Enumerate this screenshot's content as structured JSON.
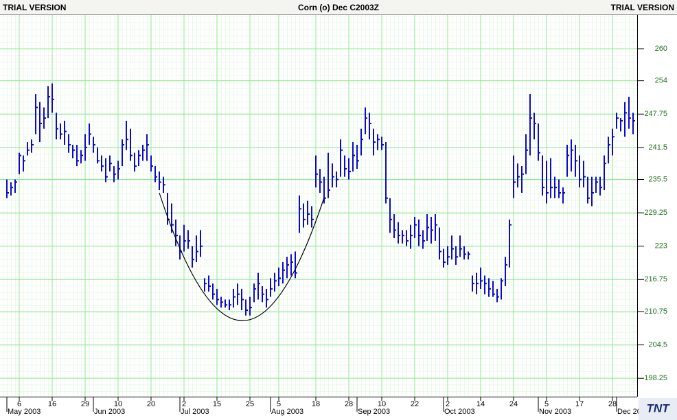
{
  "chart_data": {
    "type": "ohlc",
    "title": "Corn (o) Dec C2003Z",
    "watermark_left": "TRIAL VERSION",
    "watermark_right": "TRIAL VERSION",
    "logo": "TNT",
    "color": "#0a0ac8",
    "grid": true,
    "ylim": [
      194.8,
      266.3
    ],
    "yticks": [
      198.25,
      204.5,
      210.75,
      216.75,
      223,
      229.25,
      235.5,
      241.5,
      247.75,
      254,
      260
    ],
    "categories": [
      null,
      null,
      null,
      "6",
      null,
      null,
      null,
      null,
      null,
      null,
      null,
      "16",
      null,
      null,
      null,
      null,
      null,
      null,
      null,
      "29",
      null,
      null,
      null,
      null,
      null,
      null,
      null,
      "10",
      null,
      null,
      null,
      null,
      null,
      null,
      null,
      "20",
      null,
      null,
      null,
      null,
      null,
      null,
      null,
      "2",
      null,
      null,
      null,
      null,
      null,
      null,
      null,
      "15",
      null,
      null,
      null,
      null,
      null,
      null,
      null,
      "25",
      null,
      null,
      null,
      null,
      null,
      null,
      "5",
      null,
      null,
      null,
      null,
      null,
      null,
      null,
      null,
      "18",
      null,
      null,
      null,
      null,
      null,
      null,
      null,
      "28",
      null,
      null,
      null,
      null,
      null,
      null,
      null,
      "10",
      null,
      null,
      null,
      null,
      null,
      null,
      null,
      "22",
      null,
      null,
      null,
      null,
      null,
      null,
      null,
      "2",
      null,
      null,
      null,
      null,
      null,
      null,
      null,
      "14",
      null,
      null,
      null,
      null,
      null,
      null,
      null,
      "24",
      null,
      null,
      null,
      null,
      null,
      null,
      null,
      "5",
      null,
      null,
      null,
      null,
      null,
      null,
      null,
      "17",
      null,
      null,
      null,
      null,
      null,
      null,
      null,
      "28",
      null,
      null,
      null,
      null,
      null
    ],
    "month_labels": [
      "May 2003",
      null,
      null,
      null,
      null,
      null,
      null,
      null,
      null,
      null,
      null,
      null,
      null,
      null,
      null,
      null,
      null,
      null,
      null,
      null,
      null,
      "Jun 2003",
      null,
      null,
      null,
      null,
      null,
      null,
      null,
      null,
      null,
      null,
      null,
      null,
      null,
      null,
      null,
      null,
      null,
      null,
      null,
      null,
      "Jul 2003",
      null,
      null,
      null,
      null,
      null,
      null,
      null,
      null,
      null,
      null,
      null,
      null,
      null,
      null,
      null,
      null,
      null,
      null,
      null,
      null,
      null,
      "Aug 2003",
      null,
      null,
      null,
      null,
      null,
      null,
      null,
      null,
      null,
      null,
      null,
      null,
      null,
      null,
      null,
      null,
      null,
      null,
      null,
      null,
      "Sep 2003",
      null,
      null,
      null,
      null,
      null,
      null,
      null,
      null,
      null,
      null,
      null,
      null,
      null,
      null,
      null,
      null,
      null,
      null,
      null,
      null,
      "Oct 2003",
      null,
      null,
      null,
      null,
      null,
      null,
      null,
      null,
      null,
      null,
      null,
      null,
      null,
      null,
      null,
      null,
      null,
      null,
      null,
      null,
      null,
      null,
      "Nov 2003",
      null,
      null,
      null,
      null,
      null,
      null,
      null,
      null,
      null,
      null,
      null,
      null,
      null,
      null,
      null,
      null,
      null,
      null,
      "Dec 20",
      null,
      null,
      null,
      null
    ],
    "high": [
      235.5,
      235,
      235.5,
      240.5,
      240,
      242.5,
      243,
      251.5,
      250,
      249,
      253,
      253.5,
      248,
      246,
      246.5,
      244,
      242,
      242,
      241,
      244,
      246,
      243.5,
      241.5,
      240,
      239.5,
      240,
      238,
      239,
      243,
      246.5,
      245,
      240.5,
      241,
      242,
      244,
      240,
      238,
      237,
      236,
      233,
      231,
      228,
      225,
      227,
      226,
      223,
      225,
      226,
      217,
      217.5,
      216,
      215,
      213.5,
      213,
      213,
      215,
      216,
      215,
      213,
      213.5,
      216,
      218,
      215.5,
      215,
      217,
      218,
      219,
      220,
      221,
      221.5,
      222,
      232.5,
      231,
      231.5,
      230.5,
      240,
      237.5,
      236,
      240.5,
      238.5,
      237,
      243,
      240,
      239.5,
      242.5,
      242,
      245,
      249,
      248,
      245,
      244,
      243.5,
      242.5,
      232,
      229,
      227.5,
      226,
      226,
      227,
      228.5,
      228,
      226,
      229,
      228.5,
      229,
      226.5,
      222.5,
      223,
      225,
      223,
      225,
      223,
      222,
      217.5,
      218,
      219,
      217.5,
      217,
      216.5,
      215,
      217,
      221,
      228,
      240,
      238.5,
      238,
      244,
      251.5,
      248,
      246,
      240,
      239,
      239.5,
      236,
      235.5,
      234,
      242,
      243,
      242,
      240,
      239,
      236,
      236,
      236,
      236,
      240,
      243.5,
      245,
      248,
      247,
      250,
      251,
      248
    ],
    "low": [
      232,
      232.5,
      233,
      236.5,
      237,
      240,
      240.5,
      244,
      242.5,
      245,
      247,
      248,
      243,
      243,
      242,
      240.5,
      239.5,
      238,
      238.5,
      239,
      242,
      240.5,
      238.5,
      237,
      235,
      237,
      235,
      235.5,
      238,
      241,
      239,
      237,
      238,
      239,
      239,
      237,
      235,
      233.5,
      233,
      227,
      225.5,
      223,
      220.5,
      222,
      222.5,
      219,
      220,
      221,
      214.5,
      214.5,
      213,
      212,
      211.5,
      211.5,
      211,
      211.5,
      212,
      211,
      210,
      210,
      212.5,
      213,
      212.5,
      211.5,
      213.5,
      214.5,
      215.5,
      216,
      217,
      217.5,
      217,
      225.5,
      226.5,
      227,
      226.5,
      234,
      233,
      231,
      232,
      234,
      234,
      236,
      236,
      235.5,
      237,
      237.5,
      240,
      244,
      243,
      240,
      241,
      241,
      231,
      225.5,
      224.5,
      223.5,
      223.5,
      223,
      222.5,
      224.5,
      223,
      222.5,
      224,
      223.5,
      224,
      220.5,
      219,
      219.5,
      220.5,
      219.5,
      221,
      220.5,
      220.5,
      214.5,
      214,
      215,
      214,
      213.5,
      213.5,
      212.5,
      213,
      215.5,
      219,
      232,
      234,
      233,
      236.5,
      240,
      243,
      239,
      232.5,
      231,
      232,
      232,
      232,
      231,
      236,
      237,
      236,
      234,
      234,
      231,
      230.5,
      233,
      232.5,
      233.5,
      238.5,
      240,
      245,
      244.5,
      243.5,
      245,
      244
    ],
    "close": [
      233,
      234,
      235,
      240,
      239,
      241,
      242,
      249,
      246,
      247,
      251,
      250.5,
      245,
      244,
      244.5,
      242,
      241,
      239,
      240,
      241.5,
      244,
      242,
      239,
      238,
      236,
      238.5,
      236.5,
      237.5,
      242,
      243,
      240,
      238,
      240,
      241,
      242,
      238,
      236,
      235,
      234.5,
      228,
      227,
      225,
      222,
      224,
      224,
      220.5,
      222,
      223,
      216,
      215.5,
      214,
      213,
      212.5,
      212,
      212,
      213.5,
      214,
      213,
      211,
      211.5,
      215,
      216,
      214,
      213,
      215,
      216.5,
      217,
      218.5,
      219.5,
      220,
      218,
      230,
      228,
      229,
      228,
      236.5,
      235,
      232,
      233.5,
      236,
      235.5,
      241,
      237.5,
      237,
      240,
      239,
      243,
      247,
      246,
      242.5,
      243,
      242,
      232,
      228,
      226,
      225,
      225,
      224,
      225,
      227,
      225,
      224,
      226.5,
      226,
      227,
      222,
      220,
      221,
      222.5,
      221,
      222.5,
      221.5,
      221.5,
      216,
      216,
      216.5,
      216,
      215,
      214,
      213.5,
      216.5,
      219.5,
      227,
      235,
      236,
      236.5,
      241,
      247,
      246,
      240.5,
      234,
      233,
      234,
      234,
      233,
      233,
      240,
      241,
      239,
      235.5,
      236,
      232,
      233,
      235,
      234,
      238.5,
      242,
      243.5,
      247,
      246.5,
      248,
      247,
      246.5
    ]
  }
}
